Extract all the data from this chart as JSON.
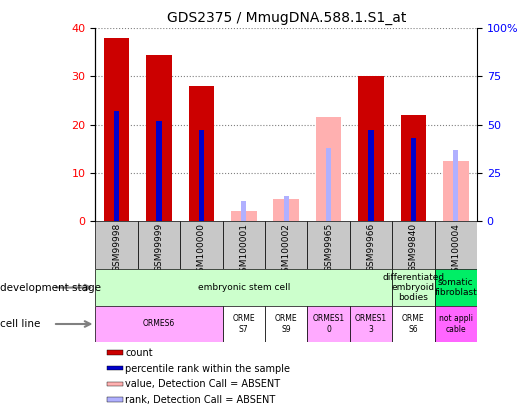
{
  "title": "GDS2375 / MmugDNA.588.1.S1_at",
  "samples": [
    "GSM99998",
    "GSM99999",
    "GSM100000",
    "GSM100001",
    "GSM100002",
    "GSM99965",
    "GSM99966",
    "GSM99840",
    "GSM100004"
  ],
  "count_values": [
    38,
    34.5,
    28,
    0,
    0,
    0,
    30,
    22,
    0
  ],
  "rank_values_pct": [
    57,
    52,
    47,
    0,
    0,
    38,
    47,
    43,
    0
  ],
  "absent_value": [
    0,
    0,
    0,
    2.0,
    4.5,
    21.5,
    0,
    0,
    12.5
  ],
  "absent_rank_pct": [
    0,
    0,
    0,
    10,
    13,
    38,
    0,
    0,
    37
  ],
  "count_color": "#cc0000",
  "rank_color": "#0000cc",
  "absent_value_color": "#ffb0b0",
  "absent_rank_color": "#b0b0ff",
  "ylim_left": [
    0,
    40
  ],
  "ylim_right": [
    0,
    100
  ],
  "yticks_left": [
    0,
    10,
    20,
    30,
    40
  ],
  "yticks_right": [
    0,
    25,
    50,
    75,
    100
  ],
  "ytick_labels_right": [
    "0",
    "25",
    "50",
    "75",
    "100%"
  ],
  "bar_width": 0.6,
  "rank_bar_width": 0.12,
  "dev_stage_groups": [
    {
      "label": "embryonic stem cell",
      "start": 0,
      "end": 7,
      "color": "#ccffcc"
    },
    {
      "label": "differentiated\nembryoid\nbodies",
      "start": 7,
      "end": 8,
      "color": "#ccffcc"
    },
    {
      "label": "somatic\nfibroblast",
      "start": 8,
      "end": 9,
      "color": "#00ee66"
    }
  ],
  "cell_line_groups": [
    {
      "label": "ORMES6",
      "start": 0,
      "end": 3,
      "color": "#ffaaff"
    },
    {
      "label": "ORME\nS7",
      "start": 3,
      "end": 4,
      "color": "#ffffff"
    },
    {
      "label": "ORME\nS9",
      "start": 4,
      "end": 5,
      "color": "#ffffff"
    },
    {
      "label": "ORMES1\n0",
      "start": 5,
      "end": 6,
      "color": "#ffaaff"
    },
    {
      "label": "ORMES1\n3",
      "start": 6,
      "end": 7,
      "color": "#ffaaff"
    },
    {
      "label": "ORME\nS6",
      "start": 7,
      "end": 8,
      "color": "#ffffff"
    },
    {
      "label": "not appli\ncable",
      "start": 8,
      "end": 9,
      "color": "#ff66ff"
    }
  ],
  "legend_items": [
    {
      "label": "count",
      "color": "#cc0000"
    },
    {
      "label": "percentile rank within the sample",
      "color": "#0000cc"
    },
    {
      "label": "value, Detection Call = ABSENT",
      "color": "#ffb0b0"
    },
    {
      "label": "rank, Detection Call = ABSENT",
      "color": "#b0b0ff"
    }
  ],
  "fig_width": 5.3,
  "fig_height": 4.05,
  "dpi": 100
}
